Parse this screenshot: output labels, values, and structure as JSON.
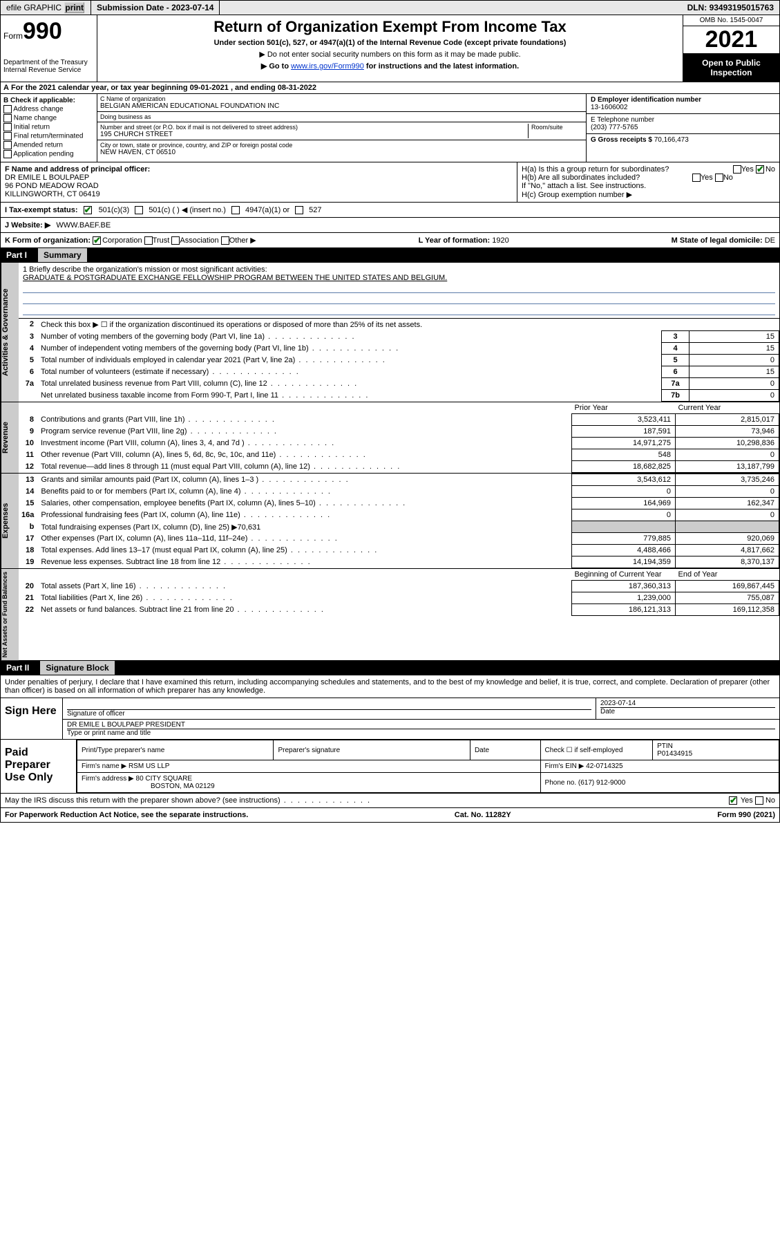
{
  "topbar": {
    "efile": "efile GRAPHIC",
    "print": "print",
    "submission_label": "Submission Date - ",
    "submission_date": "2023-07-14",
    "dln_label": "DLN: ",
    "dln": "93493195015763"
  },
  "header": {
    "form_word": "Form",
    "form_num": "990",
    "dept": "Department of the Treasury",
    "irs": "Internal Revenue Service",
    "title": "Return of Organization Exempt From Income Tax",
    "subtitle": "Under section 501(c), 527, or 4947(a)(1) of the Internal Revenue Code (except private foundations)",
    "note1": "▶ Do not enter social security numbers on this form as it may be made public.",
    "note2_pre": "▶ Go to ",
    "note2_link": "www.irs.gov/Form990",
    "note2_post": " for instructions and the latest information.",
    "omb": "OMB No. 1545-0047",
    "year": "2021",
    "open": "Open to Public Inspection"
  },
  "sectionA": {
    "tax_year": "For the 2021 calendar year, or tax year beginning 09-01-2021   , and ending 08-31-2022",
    "b_label": "B Check if applicable:",
    "b_items": [
      "Address change",
      "Name change",
      "Initial return",
      "Final return/terminated",
      "Amended return",
      "Application pending"
    ],
    "c_name_label": "C Name of organization",
    "c_name": "BELGIAN AMERICAN EDUCATIONAL FOUNDATION INC",
    "dba_label": "Doing business as",
    "dba": "",
    "street_label": "Number and street (or P.O. box if mail is not delivered to street address)",
    "room_label": "Room/suite",
    "street": "195 CHURCH STREET",
    "city_label": "City or town, state or province, country, and ZIP or foreign postal code",
    "city": "NEW HAVEN, CT  06510",
    "d_label": "D Employer identification number",
    "d_val": "13-1606002",
    "e_label": "E Telephone number",
    "e_val": "(203) 777-5765",
    "g_label": "G Gross receipts $ ",
    "g_val": "70,166,473"
  },
  "fgh": {
    "f_label": "F Name and address of principal officer:",
    "f_name": "DR EMILE L BOULPAEP",
    "f_addr1": "96 POND MEADOW ROAD",
    "f_addr2": "KILLINGWORTH, CT  06419",
    "h_a": "H(a)  Is this a group return for subordinates?",
    "h_b": "H(b)  Are all subordinates included?",
    "h_b_note": "If \"No,\" attach a list. See instructions.",
    "h_c": "H(c)  Group exemption number ▶",
    "yes": "Yes",
    "no": "No"
  },
  "status": {
    "i_label": "I   Tax-exempt status:",
    "opt1": "501(c)(3)",
    "opt2": "501(c) (   ) ◀ (insert no.)",
    "opt3": "4947(a)(1) or",
    "opt4": "527"
  },
  "website": {
    "j_label": "J   Website: ▶",
    "url": "WWW.BAEF.BE"
  },
  "korg": {
    "k_label": "K Form of organization:",
    "opts": [
      "Corporation",
      "Trust",
      "Association",
      "Other ▶"
    ],
    "l_label": "L Year of formation: ",
    "l_val": "1920",
    "m_label": "M State of legal domicile: ",
    "m_val": "DE"
  },
  "part1": {
    "label": "Part I",
    "title": "Summary"
  },
  "mission": {
    "line1_label": "1   Briefly describe the organization's mission or most significant activities:",
    "text": "GRADUATE & POSTGRADUATE EXCHANGE FELLOWSHIP PROGRAM BETWEEN THE UNITED STATES AND BELGIUM."
  },
  "gov_lines": {
    "l2": "Check this box ▶ ☐  if the organization discontinued its operations or disposed of more than 25% of its net assets.",
    "l3": {
      "t": "Number of voting members of the governing body (Part VI, line 1a)",
      "b": "3",
      "v": "15"
    },
    "l4": {
      "t": "Number of independent voting members of the governing body (Part VI, line 1b)",
      "b": "4",
      "v": "15"
    },
    "l5": {
      "t": "Total number of individuals employed in calendar year 2021 (Part V, line 2a)",
      "b": "5",
      "v": "0"
    },
    "l6": {
      "t": "Total number of volunteers (estimate if necessary)",
      "b": "6",
      "v": "15"
    },
    "l7a": {
      "t": "Total unrelated business revenue from Part VIII, column (C), line 12",
      "b": "7a",
      "v": "0"
    },
    "l7b": {
      "t": "Net unrelated business taxable income from Form 990-T, Part I, line 11",
      "b": "7b",
      "v": "0"
    }
  },
  "rev_hdr": {
    "prior": "Prior Year",
    "current": "Current Year"
  },
  "revenue": [
    {
      "n": "8",
      "t": "Contributions and grants (Part VIII, line 1h)",
      "p": "3,523,411",
      "c": "2,815,017"
    },
    {
      "n": "9",
      "t": "Program service revenue (Part VIII, line 2g)",
      "p": "187,591",
      "c": "73,946"
    },
    {
      "n": "10",
      "t": "Investment income (Part VIII, column (A), lines 3, 4, and 7d )",
      "p": "14,971,275",
      "c": "10,298,836"
    },
    {
      "n": "11",
      "t": "Other revenue (Part VIII, column (A), lines 5, 6d, 8c, 9c, 10c, and 11e)",
      "p": "548",
      "c": "0"
    },
    {
      "n": "12",
      "t": "Total revenue—add lines 8 through 11 (must equal Part VIII, column (A), line 12)",
      "p": "18,682,825",
      "c": "13,187,799"
    }
  ],
  "expenses": [
    {
      "n": "13",
      "t": "Grants and similar amounts paid (Part IX, column (A), lines 1–3 )",
      "p": "3,543,612",
      "c": "3,735,246"
    },
    {
      "n": "14",
      "t": "Benefits paid to or for members (Part IX, column (A), line 4)",
      "p": "0",
      "c": "0"
    },
    {
      "n": "15",
      "t": "Salaries, other compensation, employee benefits (Part IX, column (A), lines 5–10)",
      "p": "164,969",
      "c": "162,347"
    },
    {
      "n": "16a",
      "t": "Professional fundraising fees (Part IX, column (A), line 11e)",
      "p": "0",
      "c": "0"
    },
    {
      "n": "b",
      "t": "Total fundraising expenses (Part IX, column (D), line 25) ▶70,631",
      "p": "",
      "c": "",
      "grey": true
    },
    {
      "n": "17",
      "t": "Other expenses (Part IX, column (A), lines 11a–11d, 11f–24e)",
      "p": "779,885",
      "c": "920,069"
    },
    {
      "n": "18",
      "t": "Total expenses. Add lines 13–17 (must equal Part IX, column (A), line 25)",
      "p": "4,488,466",
      "c": "4,817,662"
    },
    {
      "n": "19",
      "t": "Revenue less expenses. Subtract line 18 from line 12",
      "p": "14,194,359",
      "c": "8,370,137"
    }
  ],
  "net_hdr": {
    "begin": "Beginning of Current Year",
    "end": "End of Year"
  },
  "netassets": [
    {
      "n": "20",
      "t": "Total assets (Part X, line 16)",
      "p": "187,360,313",
      "c": "169,867,445"
    },
    {
      "n": "21",
      "t": "Total liabilities (Part X, line 26)",
      "p": "1,239,000",
      "c": "755,087"
    },
    {
      "n": "22",
      "t": "Net assets or fund balances. Subtract line 21 from line 20",
      "p": "186,121,313",
      "c": "169,112,358"
    }
  ],
  "side_labels": {
    "gov": "Activities & Governance",
    "rev": "Revenue",
    "exp": "Expenses",
    "net": "Net Assets or Fund Balances"
  },
  "part2": {
    "label": "Part II",
    "title": "Signature Block"
  },
  "sig_decl": "Under penalties of perjury, I declare that I have examined this return, including accompanying schedules and statements, and to the best of my knowledge and belief, it is true, correct, and complete. Declaration of preparer (other than officer) is based on all information of which preparer has any knowledge.",
  "sign": {
    "here": "Sign Here",
    "sig_label": "Signature of officer",
    "date_label": "Date",
    "date": "2023-07-14",
    "name": "DR EMILE L BOULPAEP  PRESIDENT",
    "name_label": "Type or print name and title"
  },
  "preparer": {
    "label": "Paid Preparer Use Only",
    "h1": "Print/Type preparer's name",
    "h2": "Preparer's signature",
    "h3": "Date",
    "h4a": "Check ☐ if self-employed",
    "h4b_label": "PTIN",
    "h4b": "P01434915",
    "firm_label": "Firm's name    ▶",
    "firm": "RSM US LLP",
    "ein_label": "Firm's EIN ▶ ",
    "ein": "42-0714325",
    "addr_label": "Firm's address ▶",
    "addr1": "80 CITY SQUARE",
    "addr2": "BOSTON, MA  02129",
    "phone_label": "Phone no. ",
    "phone": "(617) 912-9000"
  },
  "mayirs": {
    "q": "May the IRS discuss this return with the preparer shown above? (see instructions)",
    "yes": "Yes",
    "no": "No"
  },
  "footer": {
    "left": "For Paperwork Reduction Act Notice, see the separate instructions.",
    "mid": "Cat. No. 11282Y",
    "right": "Form 990 (2021)"
  }
}
